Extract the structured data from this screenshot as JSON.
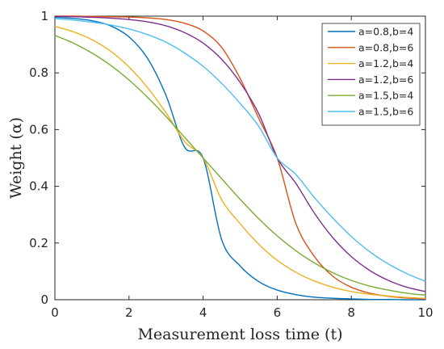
{
  "chart_data": {
    "type": "line",
    "title": "",
    "xlabel": "Measurement loss time (t)",
    "ylabel": "Weight (α)",
    "xlim": [
      0,
      10
    ],
    "ylim": [
      0,
      1
    ],
    "xticks": [
      "0",
      "2",
      "4",
      "6",
      "8",
      "10"
    ],
    "yticks": [
      "0",
      "0.2",
      "0.4",
      "0.6",
      "0.8",
      "1"
    ],
    "grid": false,
    "legend_position": "top-right",
    "x": [
      0,
      0.5,
      1,
      1.5,
      2,
      2.5,
      3,
      3.5,
      4,
      4.5,
      5,
      5.5,
      6,
      6.5,
      7,
      7.5,
      8,
      8.5,
      9,
      9.5,
      10
    ],
    "series": [
      {
        "name": "a=0.8,b=4",
        "color": "#0072BD",
        "values": [
          0.996,
          0.992,
          0.984,
          0.966,
          0.927,
          0.851,
          0.72,
          0.538,
          0.5,
          0.212,
          0.119,
          0.064,
          0.034,
          0.018,
          0.009,
          0.005,
          0.003,
          0.001,
          0.001,
          0.0,
          0.0
        ]
      },
      {
        "name": "a=0.8,b=6",
        "color": "#D95319",
        "values": [
          1.0,
          1.0,
          0.999,
          0.998,
          0.997,
          0.994,
          0.988,
          0.975,
          0.948,
          0.89,
          0.78,
          0.64,
          0.5,
          0.27,
          0.153,
          0.083,
          0.044,
          0.023,
          0.012,
          0.006,
          0.003
        ]
      },
      {
        "name": "a=1.2,b=4",
        "color": "#EDB120",
        "values": [
          0.964,
          0.945,
          0.917,
          0.877,
          0.821,
          0.748,
          0.659,
          0.558,
          0.5,
          0.353,
          0.268,
          0.196,
          0.139,
          0.097,
          0.066,
          0.044,
          0.029,
          0.019,
          0.013,
          0.008,
          0.005
        ]
      },
      {
        "name": "a=1.2,b=6",
        "color": "#7E2F8E",
        "values": [
          0.999,
          0.998,
          0.996,
          0.993,
          0.988,
          0.98,
          0.966,
          0.942,
          0.905,
          0.848,
          0.766,
          0.656,
          0.5,
          0.411,
          0.306,
          0.219,
          0.152,
          0.103,
          0.068,
          0.044,
          0.029
        ]
      },
      {
        "name": "a=1.5,b=4",
        "color": "#77AC30",
        "values": [
          0.932,
          0.905,
          0.87,
          0.827,
          0.775,
          0.714,
          0.646,
          0.573,
          0.5,
          0.427,
          0.354,
          0.286,
          0.225,
          0.173,
          0.13,
          0.095,
          0.068,
          0.048,
          0.034,
          0.023,
          0.016
        ]
      },
      {
        "name": "a=1.5,b=6",
        "color": "#4DBEEE",
        "values": [
          0.991,
          0.986,
          0.979,
          0.969,
          0.955,
          0.935,
          0.908,
          0.87,
          0.823,
          0.763,
          0.692,
          0.612,
          0.5,
          0.442,
          0.361,
          0.288,
          0.223,
          0.169,
          0.126,
          0.092,
          0.065
        ]
      }
    ]
  }
}
